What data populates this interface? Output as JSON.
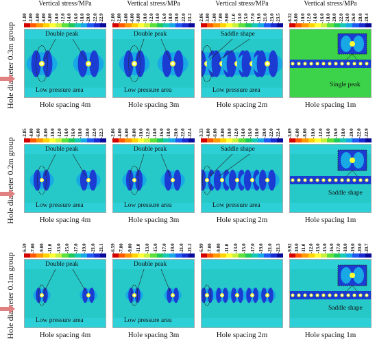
{
  "groups": [
    {
      "label": "Hole diameter 0.3m group",
      "cells": [
        {
          "title": "Vertical stress/MPa",
          "ticks": [
            "-1.80",
            "-2.00",
            "-4.00",
            "-6.00",
            "-8.00",
            "-10.0",
            "-12.0",
            "-14.0",
            "-16.0",
            "-18.0",
            "-20.0",
            "-22.0",
            "-22.9"
          ],
          "caption": "Hole spacing 4m",
          "annotations": [
            "Double peak",
            "Low pressure area"
          ]
        },
        {
          "title": "Vertical stress/MPa",
          "ticks": [
            "-2.00",
            "-2.00",
            "-4.00",
            "-6.00",
            "-8.00",
            "-10.0",
            "-12.0",
            "-14.0",
            "-16.0",
            "-18.0",
            "-20.0",
            "-22.0",
            "-23.2"
          ],
          "caption": "Hole spacing 3m",
          "annotations": [
            "Double peak",
            "Low pressure area"
          ]
        },
        {
          "title": "Vertical stress/MPa",
          "ticks": [
            "-2.06",
            "-3.00",
            "-5.00",
            "-7.00",
            "-9.00",
            "-11.0",
            "-13.0",
            "-15.0",
            "-17.0",
            "-19.0",
            "-21.0",
            "-23.0",
            "-23.5"
          ],
          "caption": "Hole spacing 2m",
          "annotations": [
            "Saddle shape",
            "Low pressure area"
          ]
        },
        {
          "title": "Vertical stress/MPa",
          "ticks": [
            "-6.32",
            "-8.00",
            "-10.0",
            "-12.0",
            "-14.0",
            "-16.0",
            "-18.0",
            "-20.0",
            "-22.0",
            "-24.0",
            "-26.0",
            "-28.0",
            "-28.4"
          ],
          "caption": "Hole spacing 1m",
          "annotations": [
            "Single peak"
          ]
        }
      ]
    },
    {
      "label": "Hole diameter 0.2m group",
      "cells": [
        {
          "title": "",
          "ticks": [
            "-2.85",
            "-4.00",
            "-6.00",
            "-8.00",
            "-10.0",
            "-12.0",
            "-14.0",
            "-16.0",
            "-18.0",
            "-20.0",
            "-22.0",
            "-22.3"
          ],
          "caption": "Hole spacing 4m",
          "annotations": [
            "Double peak",
            "Low pressure area"
          ]
        },
        {
          "title": "",
          "ticks": [
            "-2.86",
            "-4.00",
            "-6.00",
            "-8.00",
            "-10.0",
            "-12.0",
            "-14.0",
            "-16.0",
            "-18.0",
            "-20.0",
            "-22.0",
            "-22.4"
          ],
          "caption": "Hole spacing 3m",
          "annotations": [
            "Double peak",
            "Low pressure area"
          ]
        },
        {
          "title": "",
          "ticks": [
            "-3.33",
            "-4.00",
            "-6.00",
            "-8.00",
            "-10.0",
            "-12.0",
            "-14.0",
            "-16.0",
            "-18.0",
            "-20.0",
            "-22.0",
            "-22.4"
          ],
          "caption": "Hole spacing 2m",
          "annotations": [
            "Saddle shape",
            "Low pressure area"
          ]
        },
        {
          "title": "",
          "ticks": [
            "-5.09",
            "-6.00",
            "-8.00",
            "-10.0",
            "-12.0",
            "-14.0",
            "-16.0",
            "-18.0",
            "-20.0",
            "-22.0",
            "-22.9"
          ],
          "caption": "Hole spacing 1m",
          "annotations": [
            "Saddle shape"
          ]
        }
      ]
    },
    {
      "label": "Hole diameter 0.1m group",
      "cells": [
        {
          "title": "",
          "ticks": [
            "-6.59",
            "-7.00",
            "-9.00",
            "-11.0",
            "-13.0",
            "-15.0",
            "-17.0",
            "-19.0",
            "-21.0",
            "-21.1"
          ],
          "caption": "Hole spacing 4m",
          "annotations": [
            "Double peak",
            "Low pressure area"
          ]
        },
        {
          "title": "",
          "ticks": [
            "-6.59",
            "-7.00",
            "-9.00",
            "-11.0",
            "-13.0",
            "-15.0",
            "-17.0",
            "-19.0",
            "-21.0",
            "-21.2"
          ],
          "caption": "Hole spacing 3m",
          "annotations": [
            "Double peak",
            "Low pressure area"
          ]
        },
        {
          "title": "",
          "ticks": [
            "-6.99",
            "-7.00",
            "-9.00",
            "-11.0",
            "-13.0",
            "-15.0",
            "-17.0",
            "-19.0",
            "-21.0",
            "-21.3"
          ],
          "caption": "Hole spacing 2m",
          "annotations": [
            "",
            ""
          ]
        },
        {
          "title": "",
          "ticks": [
            "-9.92",
            "-10.0",
            "-11.0",
            "-12.0",
            "-13.0",
            "-15.0",
            "-16.0",
            "-17.0",
            "-18.0",
            "-19.0",
            "-20.0",
            "-20.7"
          ],
          "caption": "Hole spacing 1m",
          "annotations": [
            "Saddle shape"
          ]
        }
      ]
    }
  ],
  "colors": {
    "colormap": [
      "#d40000",
      "#ff5a00",
      "#ff9900",
      "#ffd200",
      "#ffff33",
      "#c8f03c",
      "#5ee03c",
      "#1fc85a",
      "#19c8b4",
      "#19a8e6",
      "#1e5af0",
      "#1a2bd2",
      "#0a0a9a"
    ],
    "background": "#3cd24a",
    "band": "#27c8c8",
    "lowpress": "#1b3cd2",
    "arrow": "#e08080"
  }
}
